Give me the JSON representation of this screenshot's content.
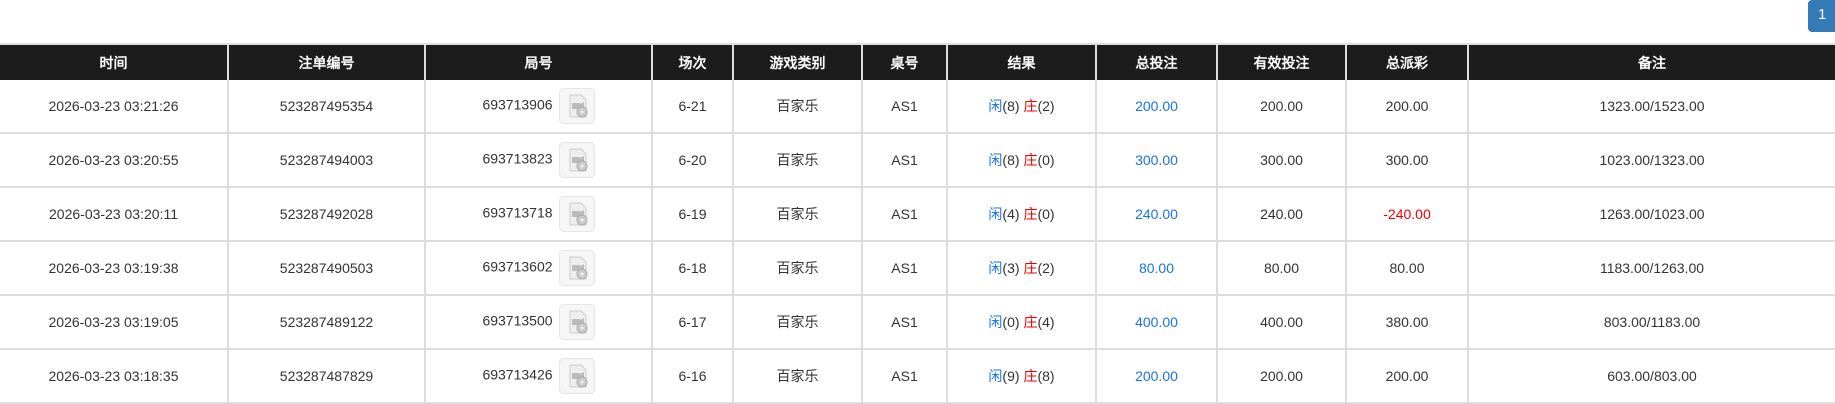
{
  "pagination": {
    "current": "1"
  },
  "columns": [
    "时间",
    "注单编号",
    "局号",
    "场次",
    "游戏类别",
    "桌号",
    "结果",
    "总投注",
    "有效投注",
    "总派彩",
    "备注"
  ],
  "colors": {
    "header_bg": "#1c1c1c",
    "bet_blue": "#1a73e8",
    "negative_red": "#ee0000",
    "player": "#1a73e8",
    "banker": "#ee0000",
    "page_button": "#337ab7"
  },
  "rows": [
    {
      "time": "2026-03-23 03:21:26",
      "bet_id": "523287495354",
      "round": "693713906",
      "shoe": "6-21",
      "game": "百家乐",
      "table": "AS1",
      "player": "闲",
      "player_score": "(8)",
      "banker": "庄",
      "banker_score": "(2)",
      "total_bet": "200.00",
      "valid_bet": "200.00",
      "payout": "200.00",
      "payout_negative": false,
      "note": "1323.00/1523.00"
    },
    {
      "time": "2026-03-23 03:20:55",
      "bet_id": "523287494003",
      "round": "693713823",
      "shoe": "6-20",
      "game": "百家乐",
      "table": "AS1",
      "player": "闲",
      "player_score": "(8)",
      "banker": "庄",
      "banker_score": "(0)",
      "total_bet": "300.00",
      "valid_bet": "300.00",
      "payout": "300.00",
      "payout_negative": false,
      "note": "1023.00/1323.00"
    },
    {
      "time": "2026-03-23 03:20:11",
      "bet_id": "523287492028",
      "round": "693713718",
      "shoe": "6-19",
      "game": "百家乐",
      "table": "AS1",
      "player": "闲",
      "player_score": "(4)",
      "banker": "庄",
      "banker_score": "(0)",
      "total_bet": "240.00",
      "valid_bet": "240.00",
      "payout": "-240.00",
      "payout_negative": true,
      "note": "1263.00/1023.00"
    },
    {
      "time": "2026-03-23 03:19:38",
      "bet_id": "523287490503",
      "round": "693713602",
      "shoe": "6-18",
      "game": "百家乐",
      "table": "AS1",
      "player": "闲",
      "player_score": "(3)",
      "banker": "庄",
      "banker_score": "(2)",
      "total_bet": "80.00",
      "valid_bet": "80.00",
      "payout": "80.00",
      "payout_negative": false,
      "note": "1183.00/1263.00"
    },
    {
      "time": "2026-03-23 03:19:05",
      "bet_id": "523287489122",
      "round": "693713500",
      "shoe": "6-17",
      "game": "百家乐",
      "table": "AS1",
      "player": "闲",
      "player_score": "(0)",
      "banker": "庄",
      "banker_score": "(4)",
      "total_bet": "400.00",
      "valid_bet": "400.00",
      "payout": "380.00",
      "payout_negative": false,
      "note": "803.00/1183.00"
    },
    {
      "time": "2026-03-23 03:18:35",
      "bet_id": "523287487829",
      "round": "693713426",
      "shoe": "6-16",
      "game": "百家乐",
      "table": "AS1",
      "player": "闲",
      "player_score": "(9)",
      "banker": "庄",
      "banker_score": "(8)",
      "total_bet": "200.00",
      "valid_bet": "200.00",
      "payout": "200.00",
      "payout_negative": false,
      "note": "603.00/803.00"
    }
  ]
}
